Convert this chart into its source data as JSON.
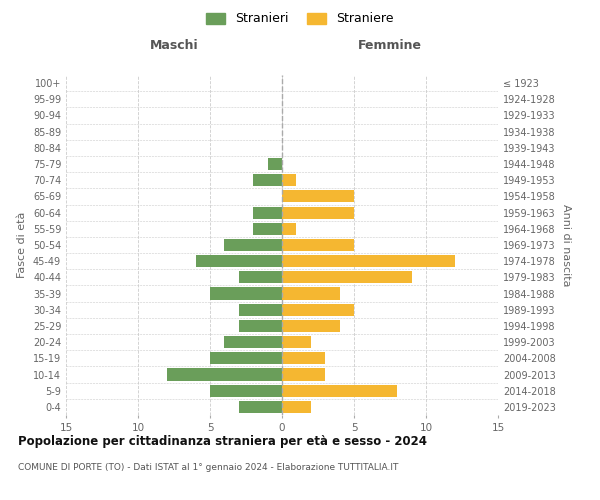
{
  "age_groups": [
    "0-4",
    "5-9",
    "10-14",
    "15-19",
    "20-24",
    "25-29",
    "30-34",
    "35-39",
    "40-44",
    "45-49",
    "50-54",
    "55-59",
    "60-64",
    "65-69",
    "70-74",
    "75-79",
    "80-84",
    "85-89",
    "90-94",
    "95-99",
    "100+"
  ],
  "birth_years": [
    "2019-2023",
    "2014-2018",
    "2009-2013",
    "2004-2008",
    "1999-2003",
    "1994-1998",
    "1989-1993",
    "1984-1988",
    "1979-1983",
    "1974-1978",
    "1969-1973",
    "1964-1968",
    "1959-1963",
    "1954-1958",
    "1949-1953",
    "1944-1948",
    "1939-1943",
    "1934-1938",
    "1929-1933",
    "1924-1928",
    "≤ 1923"
  ],
  "maschi": [
    3,
    5,
    8,
    5,
    4,
    3,
    3,
    5,
    3,
    6,
    4,
    2,
    2,
    0,
    2,
    1,
    0,
    0,
    0,
    0,
    0
  ],
  "femmine": [
    2,
    8,
    3,
    3,
    2,
    4,
    5,
    4,
    9,
    12,
    5,
    1,
    5,
    5,
    1,
    0,
    0,
    0,
    0,
    0,
    0
  ],
  "maschi_color": "#6a9e5a",
  "femmine_color": "#f5b731",
  "title": "Popolazione per cittadinanza straniera per età e sesso - 2024",
  "subtitle": "COMUNE DI PORTE (TO) - Dati ISTAT al 1° gennaio 2024 - Elaborazione TUTTITALIA.IT",
  "xlabel_left": "Maschi",
  "xlabel_right": "Femmine",
  "ylabel_left": "Fasce di età",
  "ylabel_right": "Anni di nascita",
  "legend_maschi": "Stranieri",
  "legend_femmine": "Straniere",
  "xlim": 15,
  "background_color": "#ffffff",
  "grid_color": "#cccccc",
  "bar_height": 0.75
}
